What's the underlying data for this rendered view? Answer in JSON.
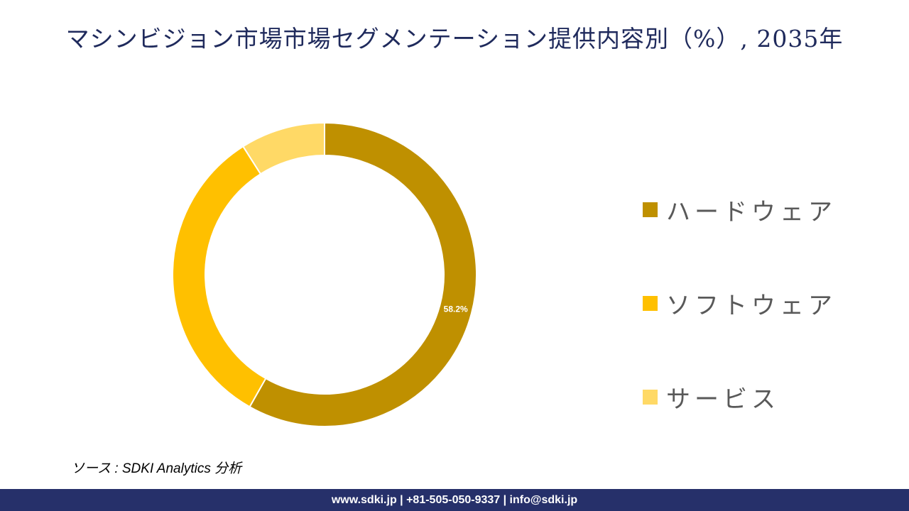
{
  "title": "マシンビジョン市場市場セグメンテーション提供内容別（%）, 2035年",
  "chart_data": {
    "type": "pie",
    "title": "マシンビジョン市場市場セグメンテーション提供内容別（%）, 2035年",
    "labels": [
      "ハードウェア",
      "ソフトウェア",
      "サービス"
    ],
    "values": [
      58.2,
      32.8,
      9.0
    ],
    "data_labels": [
      "58.2%",
      "",
      ""
    ],
    "colors": [
      "#bf9000",
      "#ffc000",
      "#ffd966"
    ],
    "donut": true,
    "legend_position": "right"
  },
  "source": "ソース : SDKI Analytics  分析",
  "footer": "www.sdki.jp | +81-505-050-9337 | info@sdki.jp"
}
